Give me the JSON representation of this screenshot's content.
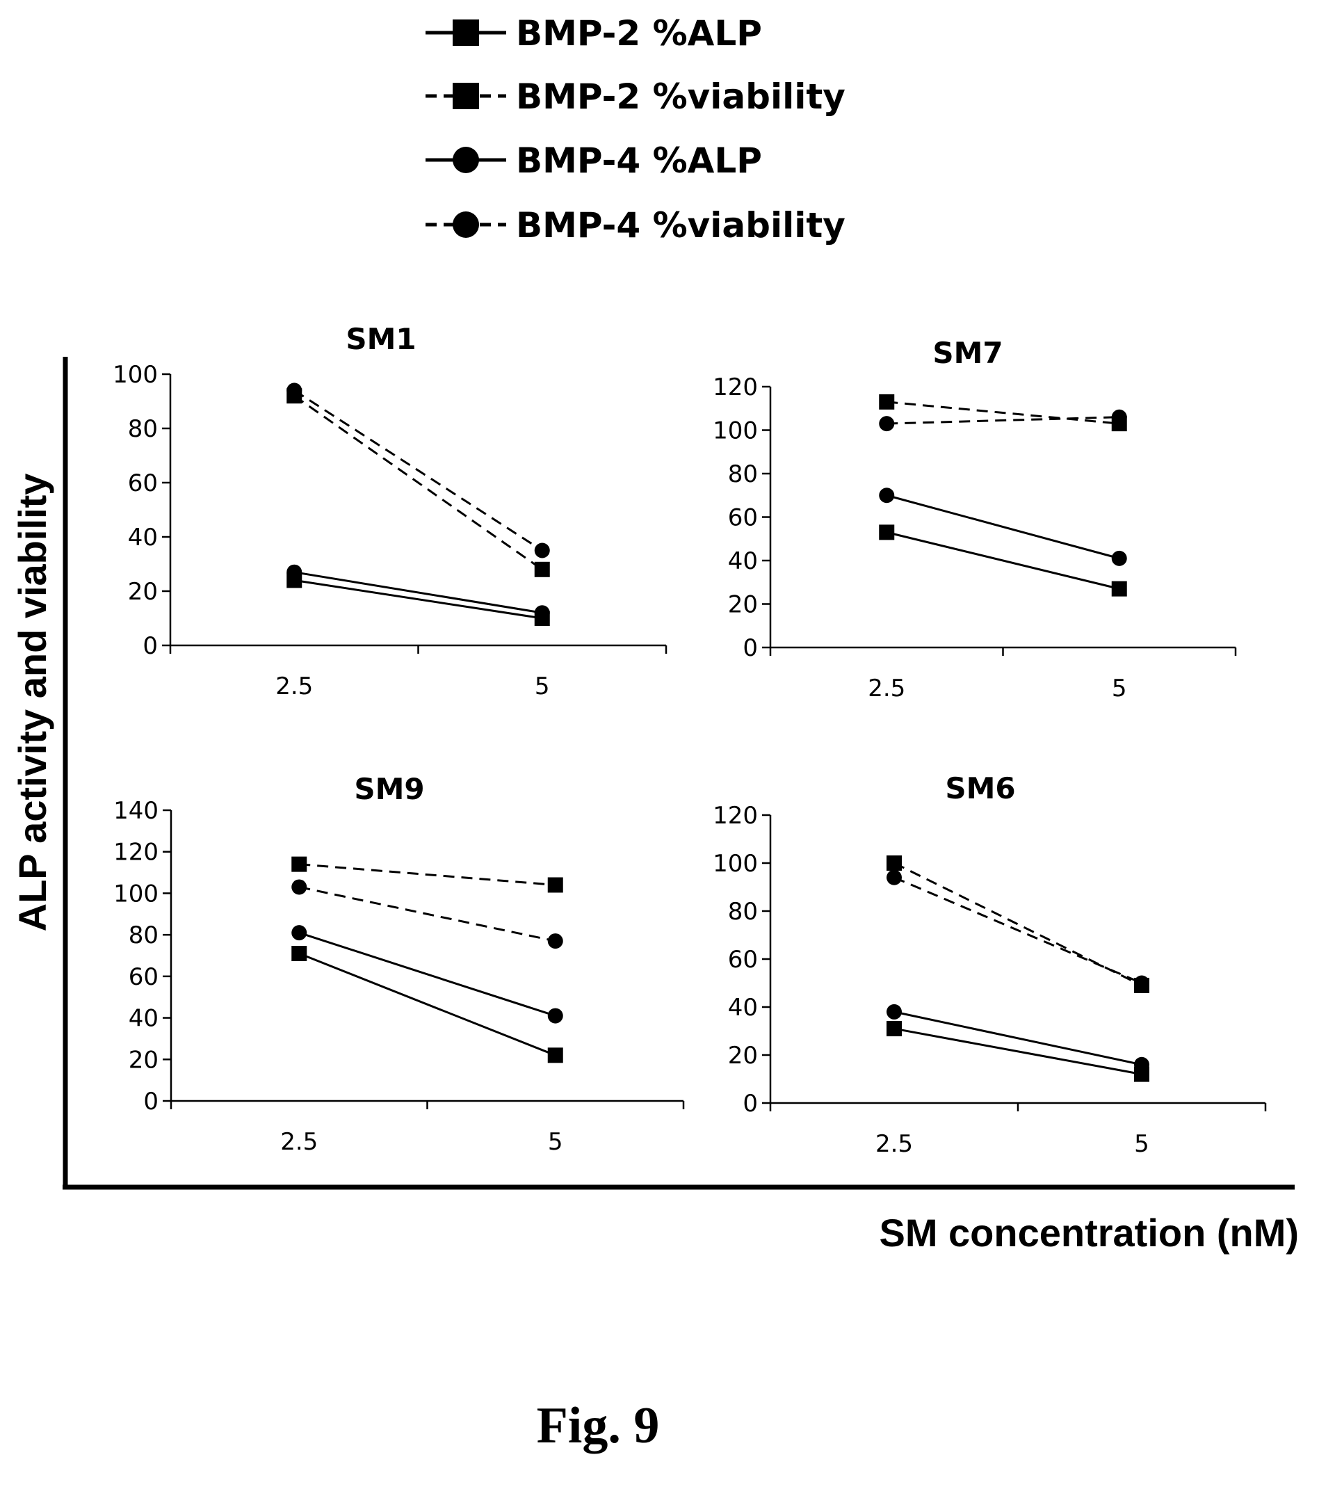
{
  "legend": [
    {
      "label": "BMP-2 %ALP",
      "marker": "square",
      "dash": "solid"
    },
    {
      "label": "BMP-2 %viability",
      "marker": "square",
      "dash": "dashed"
    },
    {
      "label": "BMP-4 %ALP",
      "marker": "circle",
      "dash": "solid"
    },
    {
      "label": "BMP-4 %viability",
      "marker": "circle",
      "dash": "dashed"
    }
  ],
  "ylabel": "ALP activity and viability",
  "xlabel": "SM concentration (nM)",
  "caption": "Fig. 9",
  "chart_data": [
    {
      "type": "line",
      "title": "SM1",
      "categories": [
        "2.5",
        "5"
      ],
      "ylim": [
        0,
        100
      ],
      "yticks": [
        "0",
        "20",
        "40",
        "60",
        "80",
        "100"
      ],
      "series": [
        {
          "name": "BMP-2 %ALP",
          "values": [
            24,
            10
          ]
        },
        {
          "name": "BMP-2 %viability",
          "values": [
            92,
            28
          ]
        },
        {
          "name": "BMP-4 %ALP",
          "values": [
            27,
            12
          ]
        },
        {
          "name": "BMP-4 %viability",
          "values": [
            94,
            35
          ]
        }
      ]
    },
    {
      "type": "line",
      "title": "SM7",
      "categories": [
        "2.5",
        "5"
      ],
      "ylim": [
        0,
        120
      ],
      "yticks": [
        "0",
        "20",
        "40",
        "60",
        "80",
        "100",
        "120"
      ],
      "series": [
        {
          "name": "BMP-2 %ALP",
          "values": [
            53,
            27
          ]
        },
        {
          "name": "BMP-2 %viability",
          "values": [
            113,
            103
          ]
        },
        {
          "name": "BMP-4 %ALP",
          "values": [
            70,
            41
          ]
        },
        {
          "name": "BMP-4 %viability",
          "values": [
            103,
            106
          ]
        }
      ]
    },
    {
      "type": "line",
      "title": "SM9",
      "categories": [
        "2.5",
        "5"
      ],
      "ylim": [
        0,
        140
      ],
      "yticks": [
        "0",
        "20",
        "40",
        "60",
        "80",
        "100",
        "120",
        "140"
      ],
      "series": [
        {
          "name": "BMP-2 %ALP",
          "values": [
            71,
            22
          ]
        },
        {
          "name": "BMP-2 %viability",
          "values": [
            114,
            104
          ]
        },
        {
          "name": "BMP-4 %ALP",
          "values": [
            81,
            41
          ]
        },
        {
          "name": "BMP-4 %viability",
          "values": [
            103,
            77
          ]
        }
      ]
    },
    {
      "type": "line",
      "title": "SM6",
      "categories": [
        "2.5",
        "5"
      ],
      "ylim": [
        0,
        120
      ],
      "yticks": [
        "0",
        "20",
        "40",
        "60",
        "80",
        "100",
        "120"
      ],
      "series": [
        {
          "name": "BMP-2 %ALP",
          "values": [
            31,
            12
          ]
        },
        {
          "name": "BMP-2 %viability",
          "values": [
            100,
            49
          ]
        },
        {
          "name": "BMP-4 %ALP",
          "values": [
            38,
            16
          ]
        },
        {
          "name": "BMP-4 %viability",
          "values": [
            94,
            50
          ]
        }
      ]
    }
  ]
}
